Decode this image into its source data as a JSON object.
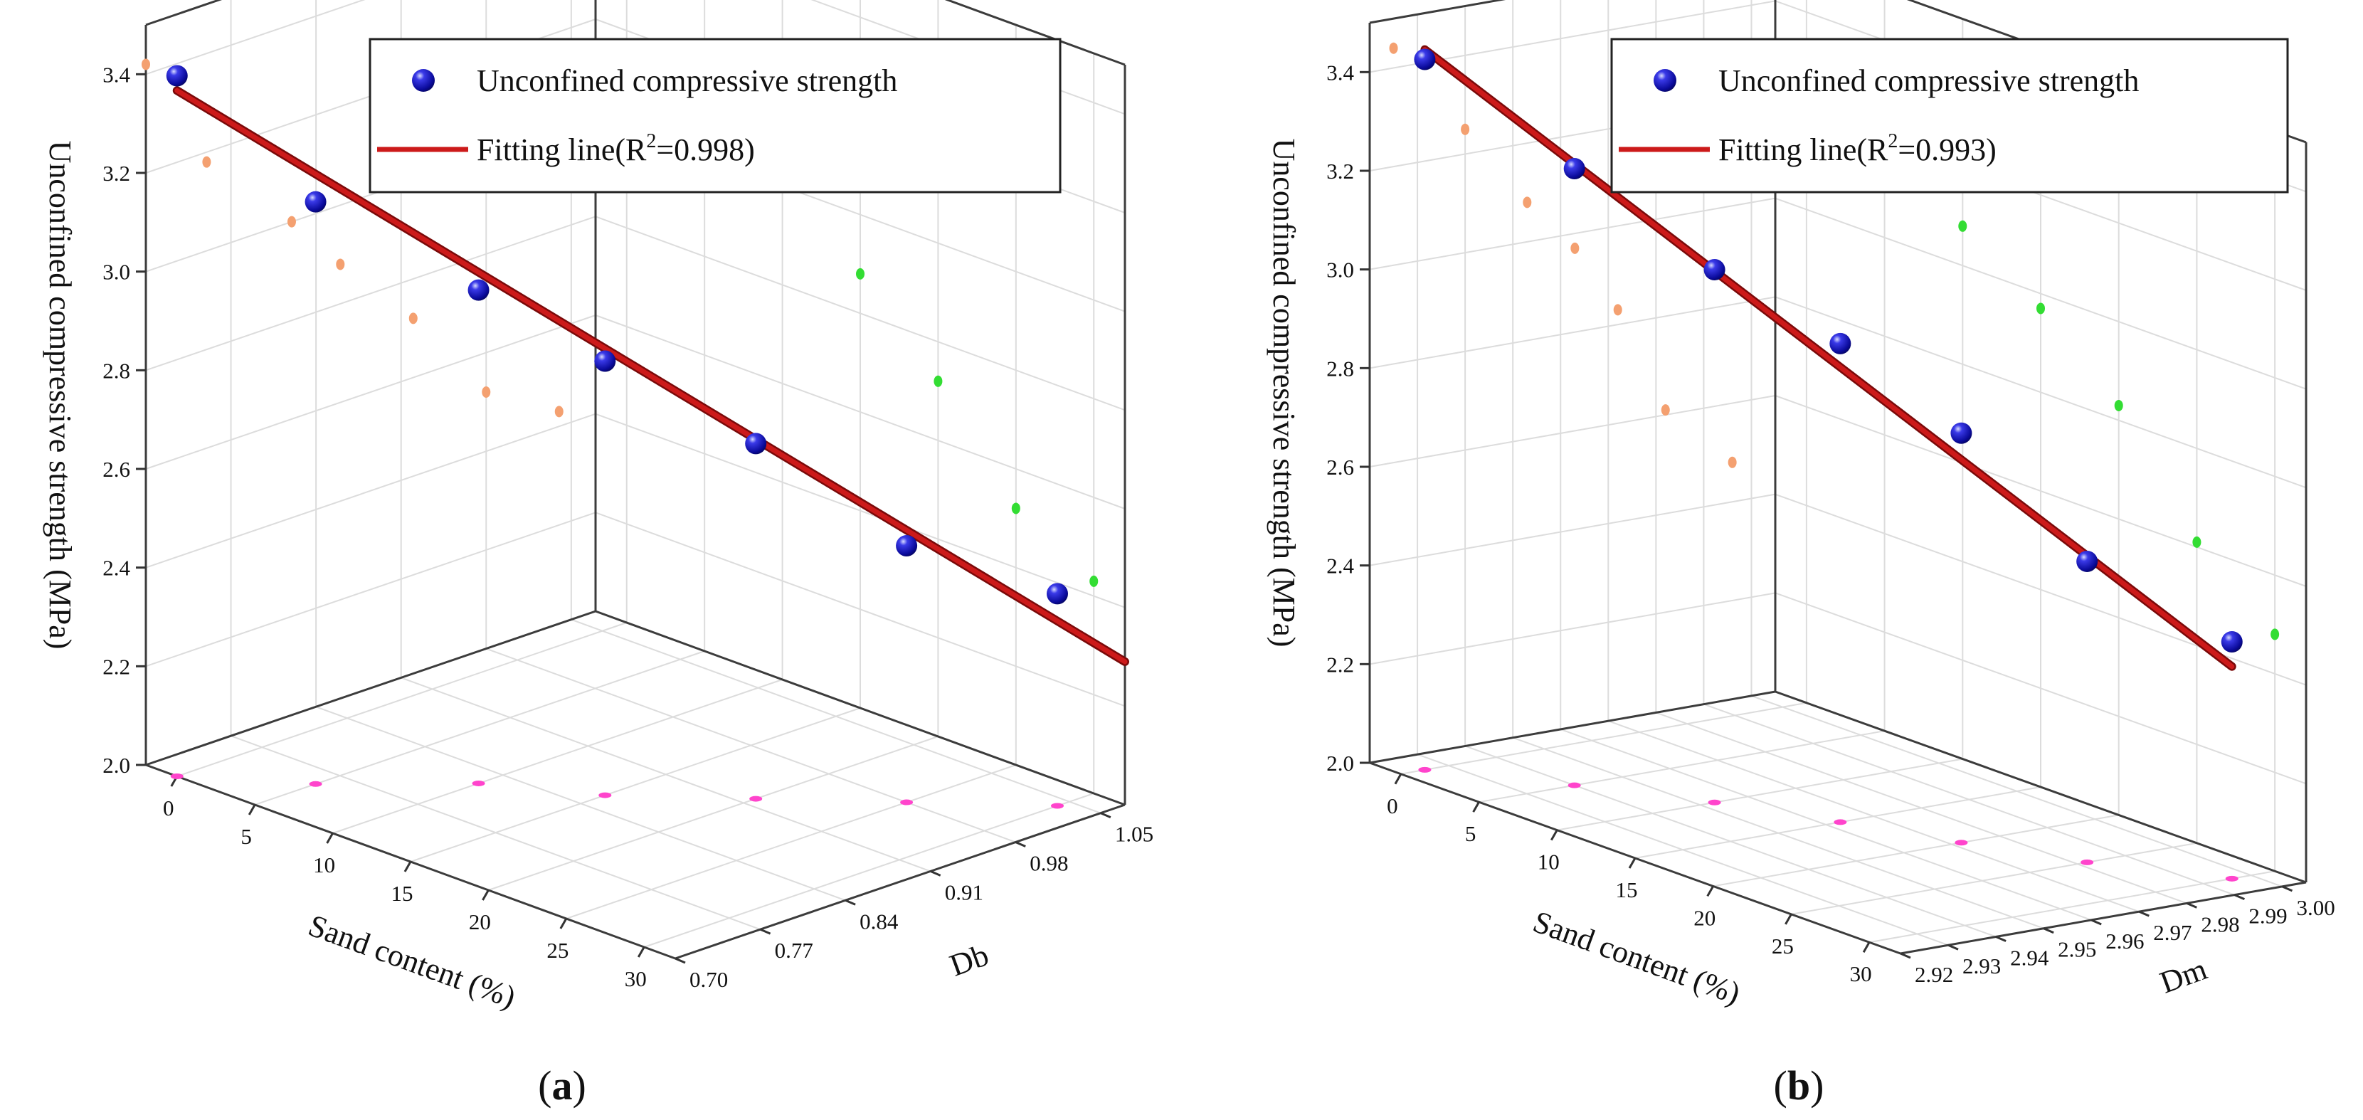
{
  "colors": {
    "point": "#1010c8",
    "fit": "#cc1a1a",
    "proj_y": "#f4a070",
    "proj_z": "#33dd33",
    "proj_x": "#ff44cc"
  },
  "chart_data": [
    {
      "type": "scatter",
      "panel_label": "(a)",
      "xlabel": "Sand content (%)",
      "ylabel": "Db",
      "zlabel": "Unconfined compressive strength (MPa)",
      "x_ticks": [
        "0",
        "5",
        "10",
        "15",
        "20",
        "25",
        "30"
      ],
      "y_ticks": [
        "0.70",
        "0.77",
        "0.84",
        "0.91",
        "0.98",
        "1.05"
      ],
      "z_ticks": [
        "2.0",
        "2.2",
        "2.4",
        "2.6",
        "2.8",
        "3.0",
        "3.2",
        "3.4"
      ],
      "xlim": [
        -2,
        32
      ],
      "ylim": [
        0.7,
        1.07
      ],
      "zlim": [
        2.0,
        3.5
      ],
      "legend": {
        "points": "Unconfined compressive strength",
        "fit_prefix": "Fitting line(R",
        "fit_sup": "2",
        "fit_suffix": "=0.998)"
      },
      "series": [
        {
          "name": "Unconfined compressive strength",
          "x": [
            0,
            5,
            10,
            15,
            20,
            25,
            30
          ],
          "y": [
            0.7,
            0.75,
            0.82,
            0.86,
            0.92,
            0.98,
            1.04
          ],
          "z": [
            3.42,
            3.18,
            3.0,
            2.88,
            2.72,
            2.52,
            2.43
          ]
        }
      ],
      "fit_line": {
        "x": [
          0,
          32
        ],
        "y": [
          0.7,
          1.07
        ],
        "z": [
          3.39,
          2.29
        ]
      }
    },
    {
      "type": "scatter",
      "panel_label": "(b)",
      "xlabel": "Sand content (%)",
      "ylabel": "Dm",
      "zlabel": "Unconfined compressive strength (MPa)",
      "x_ticks": [
        "0",
        "5",
        "10",
        "15",
        "20",
        "25",
        "30"
      ],
      "y_ticks": [
        "2.92",
        "2.93",
        "2.94",
        "2.95",
        "2.96",
        "2.97",
        "2.98",
        "2.99",
        "3.00"
      ],
      "z_ticks": [
        "2.0",
        "2.2",
        "2.4",
        "2.6",
        "2.8",
        "3.0",
        "3.2",
        "3.4"
      ],
      "xlim": [
        -2,
        32
      ],
      "ylim": [
        2.92,
        3.005
      ],
      "zlim": [
        2.0,
        3.5
      ],
      "legend": {
        "points": "Unconfined compressive strength",
        "fit_prefix": "Fitting line(R",
        "fit_sup": "2",
        "fit_suffix": "=0.993)"
      },
      "series": [
        {
          "name": "Unconfined compressive strength",
          "x": [
            0,
            5,
            10,
            15,
            20,
            25,
            30
          ],
          "y": [
            2.925,
            2.94,
            2.953,
            2.963,
            2.972,
            2.982,
            2.996
          ],
          "z": [
            3.44,
            3.25,
            3.08,
            2.97,
            2.83,
            2.61,
            2.48
          ]
        }
      ],
      "fit_line": {
        "x": [
          0,
          30
        ],
        "y": [
          2.925,
          2.996
        ],
        "z": [
          3.46,
          2.43
        ]
      }
    }
  ]
}
